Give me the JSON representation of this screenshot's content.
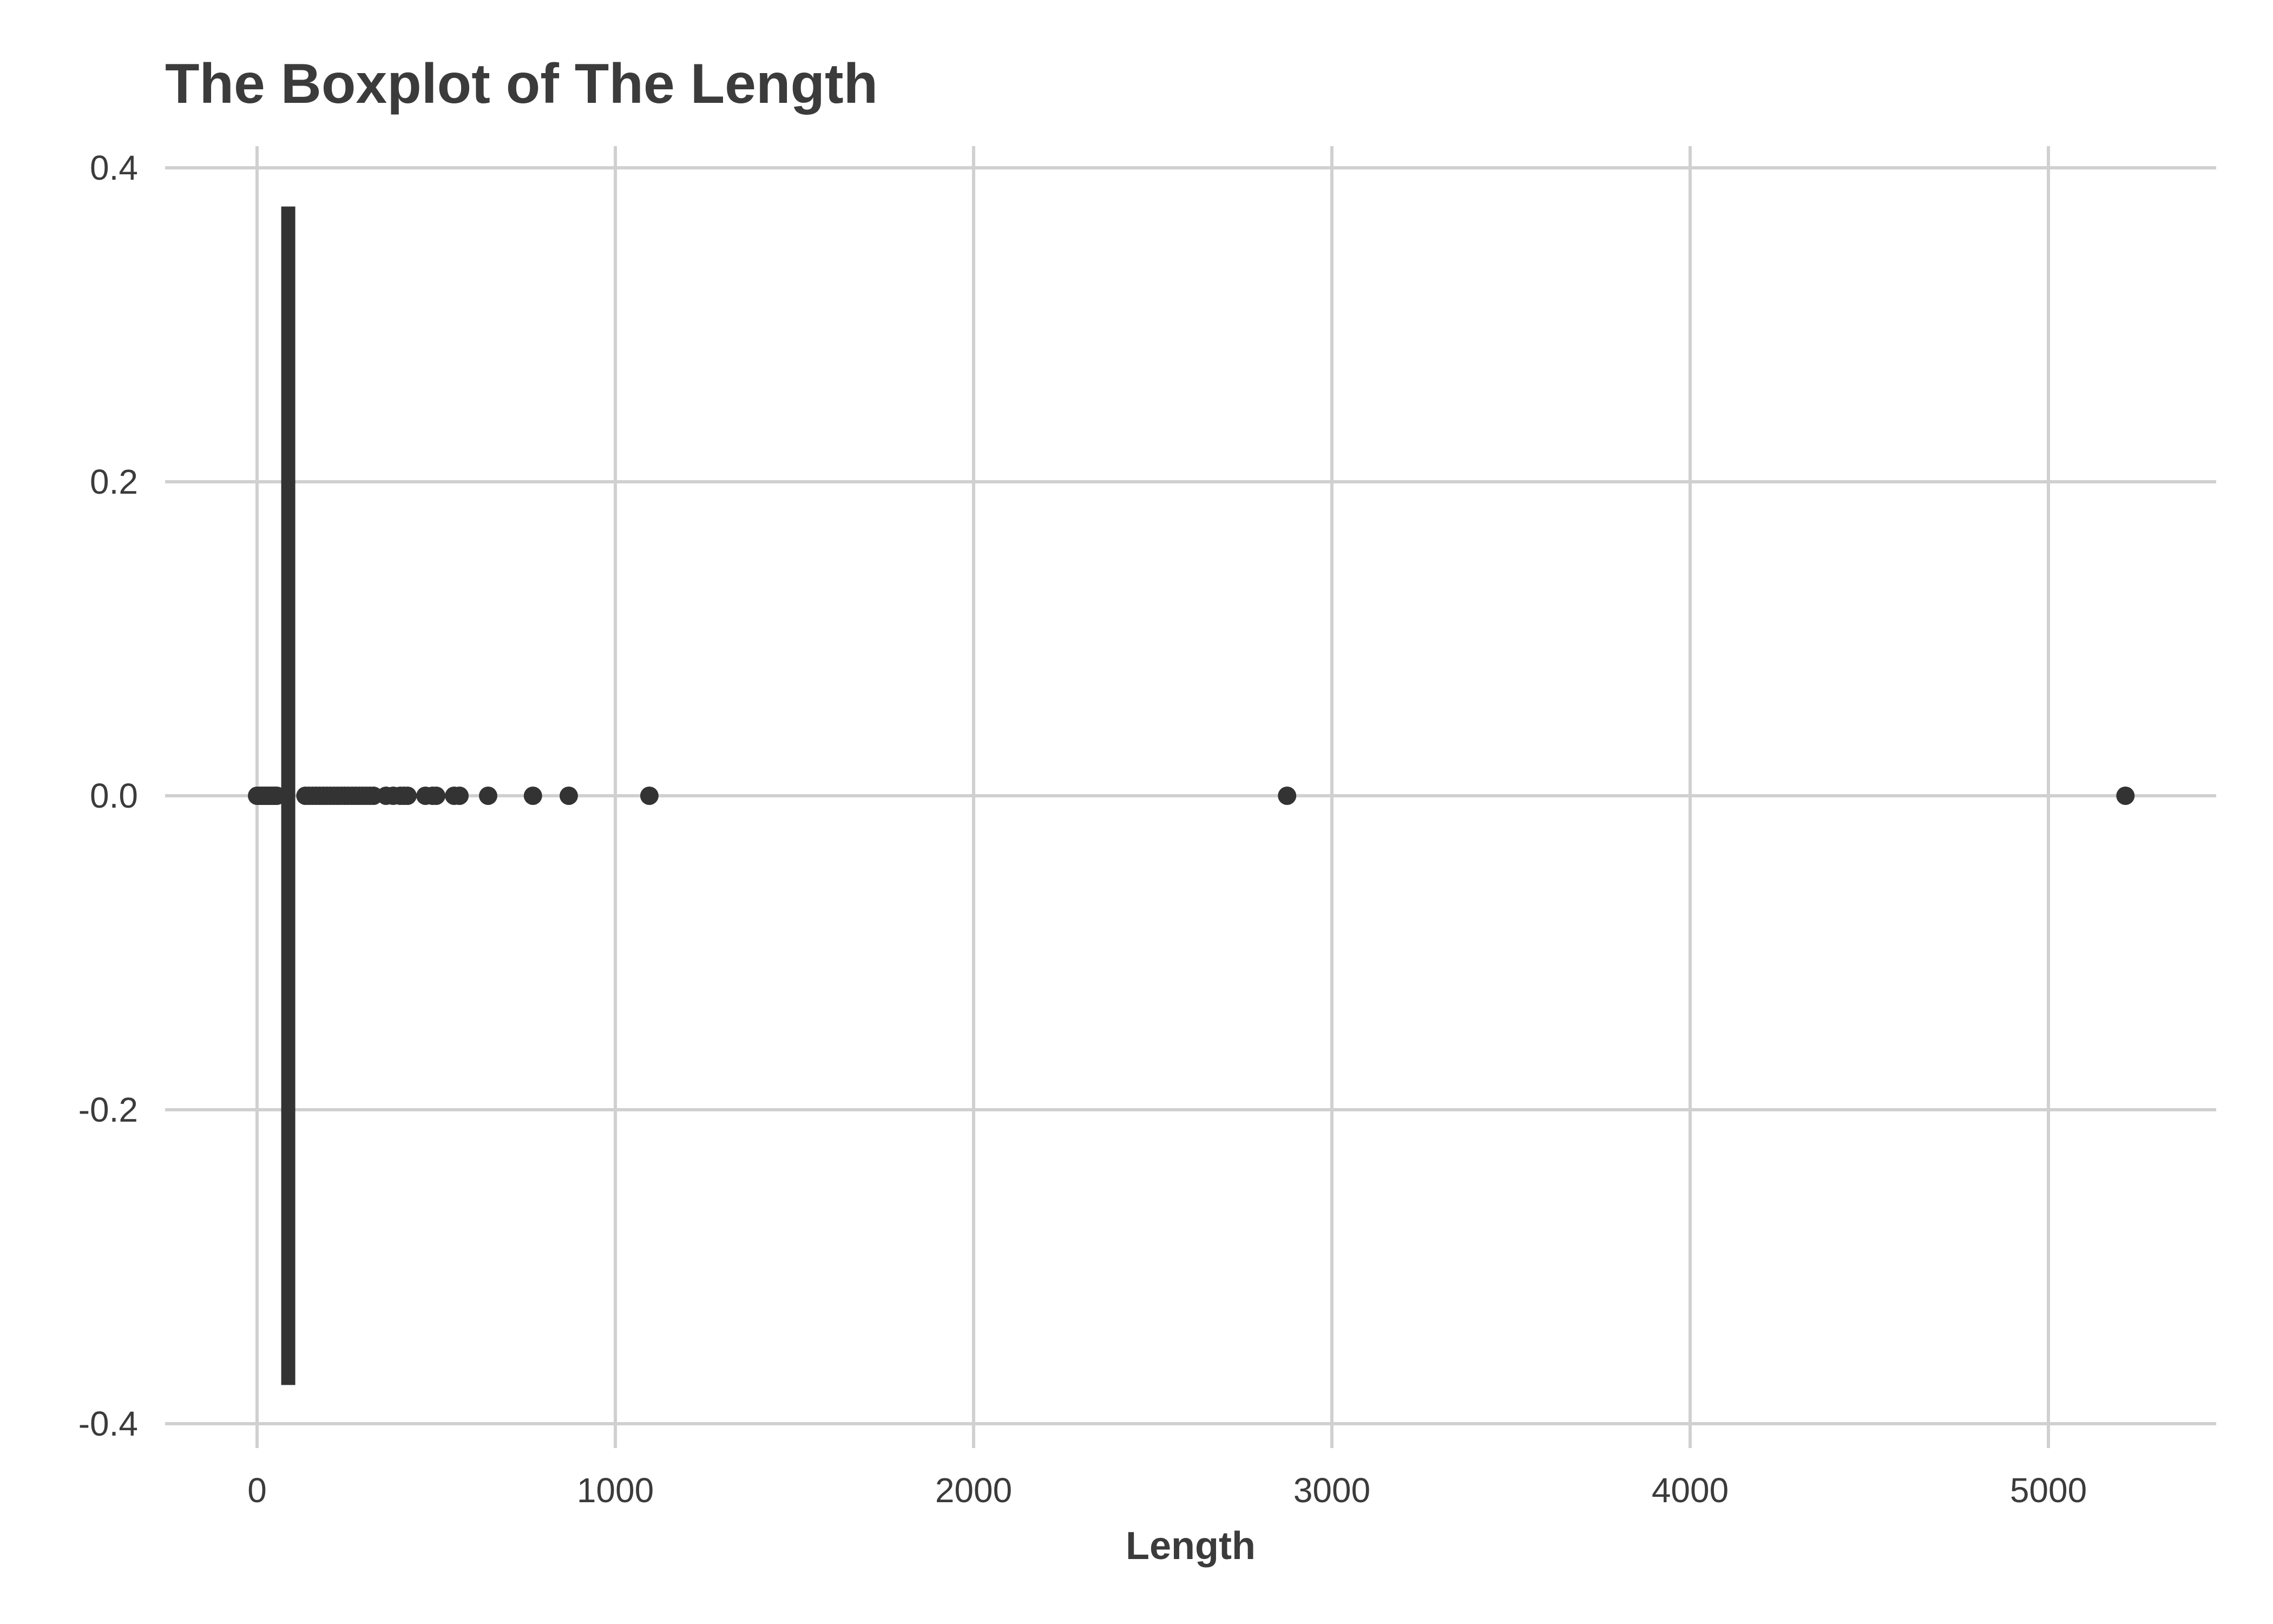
{
  "chart_data": {
    "type": "boxplot",
    "title": "The Boxplot of The Length",
    "xlabel": "Length",
    "ylabel": "",
    "xlim": [
      -250,
      5500
    ],
    "ylim": [
      -0.4,
      0.4
    ],
    "x_ticks": [
      0,
      1000,
      2000,
      3000,
      4000,
      5000
    ],
    "x_tick_labels": [
      "0",
      "1000",
      "2000",
      "3000",
      "4000",
      "5000"
    ],
    "y_ticks": [
      -0.4,
      -0.2,
      0.0,
      0.2,
      0.4
    ],
    "y_tick_labels": [
      "-0.4",
      "-0.2",
      "0.0",
      "0.2",
      "0.4"
    ],
    "grid": true,
    "colors": {
      "marks": "#333333",
      "grid": "#d0d0d0",
      "text": "#3b3b3b"
    },
    "box": {
      "min": 83,
      "q1": 85,
      "median": 87,
      "q3": 89,
      "max": 91,
      "y_top": 0.375,
      "y_bottom": -0.375
    },
    "outliers_y": 0.0,
    "outliers": [
      0,
      5,
      10,
      15,
      20,
      25,
      30,
      35,
      40,
      45,
      50,
      55,
      135,
      145,
      155,
      165,
      175,
      185,
      195,
      205,
      215,
      225,
      235,
      245,
      255,
      265,
      275,
      285,
      295,
      305,
      315,
      325,
      360,
      380,
      400,
      410,
      420,
      470,
      490,
      500,
      550,
      565,
      645,
      770,
      870,
      1095,
      2875,
      5215
    ]
  }
}
